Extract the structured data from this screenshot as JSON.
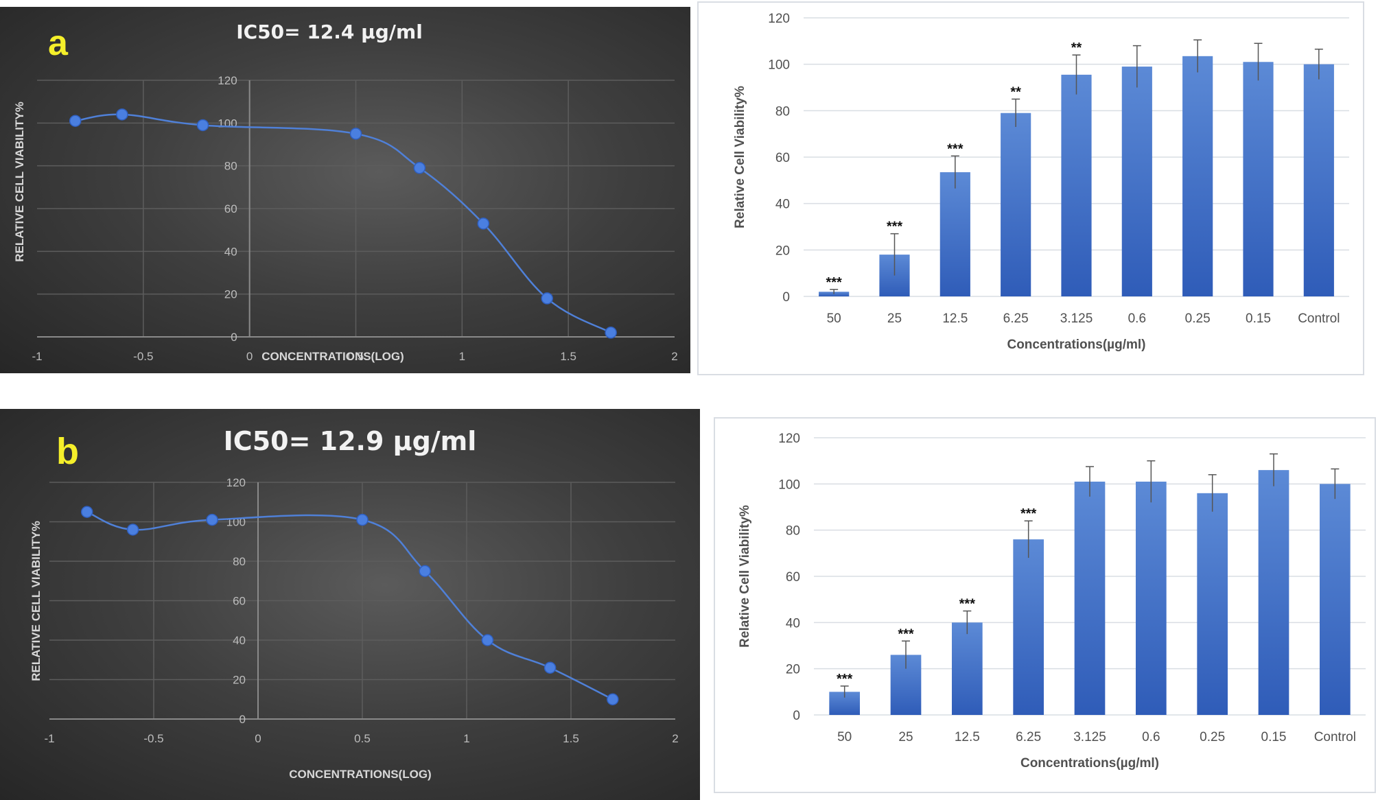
{
  "colors": {
    "panel_letter": "#f5ef2a",
    "line": "#4f80d8",
    "marker": "#4a7fe0",
    "bar_top": "#5c8ad6",
    "bar_bottom": "#2f5cb8",
    "grid_dark": "#5d5d5d",
    "grid_light": "#d9dde3"
  },
  "chart_data": [
    {
      "id": "a-curve",
      "type": "line",
      "style": "dark",
      "panel_label": "a",
      "title": "IC50= 12.4 µg/ml",
      "xlabel": "CONCENTRATIONS(LOG)",
      "ylabel": "RELATIVE CELL VIABILITY%",
      "xlim": [
        -1,
        2
      ],
      "ylim": [
        0,
        120
      ],
      "xticks": [
        "-1",
        "-0.5",
        "0",
        "0.5",
        "1",
        "1.5",
        "2"
      ],
      "yticks": [
        "0",
        "20",
        "40",
        "60",
        "80",
        "100",
        "120"
      ],
      "grid": true,
      "smooth": true,
      "series": [
        {
          "x": [
            -0.82,
            -0.6,
            -0.22,
            0.5,
            0.8,
            1.1,
            1.4,
            1.7
          ],
          "y": [
            101,
            104,
            99,
            95,
            79,
            53,
            18,
            2
          ]
        }
      ]
    },
    {
      "id": "a-bars",
      "type": "bar",
      "style": "light",
      "xlabel": "Concentrations(µg/ml)",
      "ylabel": "Relative Cell Viability%",
      "ylim": [
        0,
        120
      ],
      "yticks": [
        "0",
        "20",
        "40",
        "60",
        "80",
        "100",
        "120"
      ],
      "categories": [
        "50",
        "25",
        "12.5",
        "6.25",
        "3.125",
        "0.6",
        "0.25",
        "0.15",
        "Control"
      ],
      "values": [
        2,
        18,
        53.5,
        79,
        95.5,
        99,
        103.5,
        101,
        100
      ],
      "errors": [
        1,
        9,
        7,
        6,
        8.5,
        9,
        7,
        8,
        6.5
      ],
      "significance": [
        "***",
        "***",
        "***",
        "**",
        "**",
        "",
        "",
        "",
        ""
      ]
    },
    {
      "id": "b-curve",
      "type": "line",
      "style": "dark",
      "panel_label": "b",
      "title": "IC50= 12.9 µg/ml",
      "xlabel": "CONCENTRATIONS(LOG)",
      "ylabel": "RELATIVE CELL VIABILITY%",
      "xlim": [
        -1,
        2
      ],
      "ylim": [
        0,
        120
      ],
      "xticks": [
        "-1",
        "-0.5",
        "0",
        "0.5",
        "1",
        "1.5",
        "2"
      ],
      "yticks": [
        "0",
        "20",
        "40",
        "60",
        "80",
        "100",
        "120"
      ],
      "grid": true,
      "smooth": true,
      "series": [
        {
          "x": [
            -0.82,
            -0.6,
            -0.22,
            0.5,
            0.8,
            1.1,
            1.4,
            1.7
          ],
          "y": [
            105,
            96,
            101,
            101,
            75,
            40,
            26,
            10
          ]
        }
      ]
    },
    {
      "id": "b-bars",
      "type": "bar",
      "style": "light",
      "xlabel": "Concentrations(µg/ml)",
      "ylabel": "Relative Cell Viability%",
      "ylim": [
        0,
        120
      ],
      "yticks": [
        "0",
        "20",
        "40",
        "60",
        "80",
        "100",
        "120"
      ],
      "categories": [
        "50",
        "25",
        "12.5",
        "6.25",
        "3.125",
        "0.6",
        "0.25",
        "0.15",
        "Control"
      ],
      "values": [
        10,
        26,
        40,
        76,
        101,
        101,
        96,
        106,
        100
      ],
      "errors": [
        2.5,
        6,
        5,
        8,
        6.5,
        9,
        8,
        7,
        6.5
      ],
      "significance": [
        "***",
        "***",
        "***",
        "***",
        "",
        "",
        "",
        "",
        ""
      ]
    }
  ]
}
